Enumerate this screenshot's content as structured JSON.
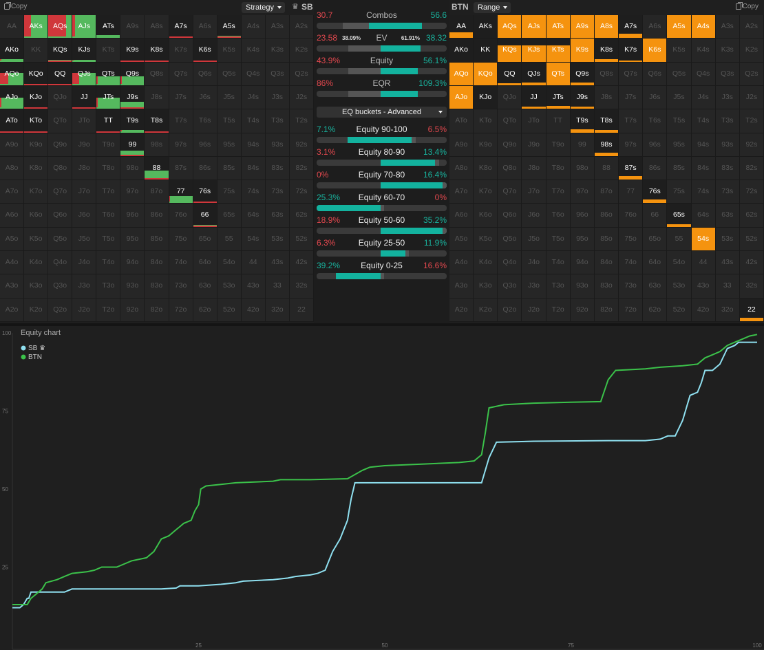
{
  "left": {
    "copy": "Copy",
    "dropdown": "Strategy",
    "player": "SB"
  },
  "right": {
    "player": "BTN",
    "dropdown": "Range",
    "copy": "Copy"
  },
  "hands": [
    [
      "AA",
      "AKs",
      "AQs",
      "AJs",
      "ATs",
      "A9s",
      "A8s",
      "A7s",
      "A6s",
      "A5s",
      "A4s",
      "A3s",
      "A2s"
    ],
    [
      "AKo",
      "KK",
      "KQs",
      "KJs",
      "KTs",
      "K9s",
      "K8s",
      "K7s",
      "K6s",
      "K5s",
      "K4s",
      "K3s",
      "K2s"
    ],
    [
      "AQo",
      "KQo",
      "QQ",
      "QJs",
      "QTs",
      "Q9s",
      "Q8s",
      "Q7s",
      "Q6s",
      "Q5s",
      "Q4s",
      "Q3s",
      "Q2s"
    ],
    [
      "AJo",
      "KJo",
      "QJo",
      "JJ",
      "JTs",
      "J9s",
      "J8s",
      "J7s",
      "J6s",
      "J5s",
      "J4s",
      "J3s",
      "J2s"
    ],
    [
      "ATo",
      "KTo",
      "QTo",
      "JTo",
      "TT",
      "T9s",
      "T8s",
      "T7s",
      "T6s",
      "T5s",
      "T4s",
      "T3s",
      "T2s"
    ],
    [
      "A9o",
      "K9o",
      "Q9o",
      "J9o",
      "T9o",
      "99",
      "98s",
      "97s",
      "96s",
      "95s",
      "94s",
      "93s",
      "92s"
    ],
    [
      "A8o",
      "K8o",
      "Q8o",
      "J8o",
      "T8o",
      "98o",
      "88",
      "87s",
      "86s",
      "85s",
      "84s",
      "83s",
      "82s"
    ],
    [
      "A7o",
      "K7o",
      "Q7o",
      "J7o",
      "T7o",
      "97o",
      "87o",
      "77",
      "76s",
      "75s",
      "74s",
      "73s",
      "72s"
    ],
    [
      "A6o",
      "K6o",
      "Q6o",
      "J6o",
      "T6o",
      "96o",
      "86o",
      "76o",
      "66",
      "65s",
      "64s",
      "63s",
      "62s"
    ],
    [
      "A5o",
      "K5o",
      "Q5o",
      "J5o",
      "T5o",
      "95o",
      "85o",
      "75o",
      "65o",
      "55",
      "54s",
      "53s",
      "52s"
    ],
    [
      "A4o",
      "K4o",
      "Q4o",
      "J4o",
      "T4o",
      "94o",
      "84o",
      "74o",
      "64o",
      "54o",
      "44",
      "43s",
      "42s"
    ],
    [
      "A3o",
      "K3o",
      "Q3o",
      "J3o",
      "T3o",
      "93o",
      "83o",
      "73o",
      "63o",
      "53o",
      "43o",
      "33",
      "32s"
    ],
    [
      "A2o",
      "K2o",
      "Q2o",
      "J2o",
      "T2o",
      "92o",
      "82o",
      "72o",
      "62o",
      "52o",
      "42o",
      "32o",
      "22"
    ]
  ],
  "sb_strategy": {
    "AKs": [
      0.3,
      1,
      0.7
    ],
    "AQs": [
      0.75,
      1,
      0.25
    ],
    "AJs": [
      0.1,
      1,
      0.9
    ],
    "ATs": [
      0,
      0.12,
      0.95
    ],
    "A7s": [
      0,
      0.08,
      1
    ],
    "A5s": [
      0,
      0.1,
      1
    ],
    "AKo": [
      0.05,
      0.1,
      0.95
    ],
    "KQs": [
      0,
      0.07,
      1
    ],
    "KJs": [
      0.05,
      0.07,
      0.95
    ],
    "K9s": [
      0,
      0.05,
      1
    ],
    "K8s": [
      0,
      0.05,
      1
    ],
    "K6s": [
      0,
      0,
      1
    ],
    "AQo": [
      0.35,
      0.55,
      0.65
    ],
    "KQo": [
      0,
      0,
      1
    ],
    "QQ": [
      0,
      0.07,
      1
    ],
    "QJs": [
      0.3,
      0.55,
      0.7
    ],
    "QTs": [
      0.05,
      0.4,
      0.95
    ],
    "Q9s": [
      0.05,
      0.4,
      0.95
    ],
    "AJo": [
      0.05,
      0.5,
      0.95
    ],
    "KJo": [
      0,
      0,
      1
    ],
    "JJ": [
      0,
      0.05,
      1
    ],
    "JTs": [
      0.05,
      0.5,
      0.95
    ],
    "J9s": [
      0,
      0.3,
      1
    ],
    "ATo": [
      0,
      0.04,
      1
    ],
    "KTo": [
      0,
      0.04,
      1
    ],
    "TT": [
      0,
      0.04,
      1
    ],
    "T9s": [
      0.05,
      0.1,
      0.95
    ],
    "T8s": [
      0,
      0.05,
      1
    ],
    "99": [
      0,
      0.25,
      1
    ],
    "88": [
      0,
      0.4,
      1
    ],
    "77": [
      0.04,
      0.3,
      0.96
    ],
    "76s": [
      0,
      0.05,
      1
    ],
    "66": [
      0,
      0.07,
      1
    ]
  },
  "btn_range": {
    "AA": 0.25,
    "AQs": 1,
    "AJs": 1,
    "ATs": 1,
    "A9s": 1,
    "A8s": 1,
    "A7s": 0.2,
    "A5s": 1,
    "A4s": 1,
    "AKo": 0,
    "KK": 0,
    "KQs": 0.7,
    "KJs": 0.7,
    "KTs": 0.7,
    "K9s": 1,
    "K8s": 0.12,
    "K7s": 0.05,
    "K6s": 1,
    "AQo": 1,
    "KQo": 1,
    "QQ": 0.1,
    "QJs": 0.12,
    "QTs": 1,
    "Q9s": 0.12,
    "AJo": 1,
    "KJo": 0,
    "JJ": 0.1,
    "JTs": 0.12,
    "J9s": 0.1,
    "T9s": 0.15,
    "T8s": 0.12,
    "98s": 0.15,
    "87s": 0.15,
    "76s": 0.15,
    "65s": 0.1,
    "54s": 1,
    "22": 0.15
  },
  "btn_on": [
    "AA",
    "AKs",
    "AQs",
    "AJs",
    "ATs",
    "A9s",
    "A8s",
    "A7s",
    "A5s",
    "A4s",
    "AKo",
    "KK",
    "KQs",
    "KJs",
    "KTs",
    "K9s",
    "K8s",
    "K7s",
    "K6s",
    "AQo",
    "KQo",
    "QQ",
    "QJs",
    "QTs",
    "Q9s",
    "AJo",
    "KJo",
    "JJ",
    "JTs",
    "J9s",
    "T9s",
    "T8s",
    "98s",
    "87s",
    "76s",
    "65s",
    "54s",
    "22"
  ],
  "stats": [
    {
      "label": "Combos",
      "left": "30.7",
      "right": "56.6",
      "bar": [
        0.4,
        0.81
      ]
    },
    {
      "label": "EV",
      "left": "23.58",
      "left_pct": "38.09%",
      "right": "38.32",
      "right_pct": "61.91%",
      "bar": [
        0.49,
        0.8
      ]
    },
    {
      "label": "Equity",
      "left": "43.9%",
      "right": "56.1%",
      "bar": [
        0.49,
        0.78
      ]
    },
    {
      "label": "EQR",
      "left": "86%",
      "right": "109.3%",
      "bar": [
        0.49,
        0.78
      ]
    }
  ],
  "eq_dropdown": "EQ buckets - Advanced",
  "buckets": [
    {
      "label": "Equity 90-100",
      "left": "7.1%",
      "right": "6.5%",
      "lc": "tl",
      "rc": "red",
      "bar": [
        0.24,
        0.49,
        0.73
      ]
    },
    {
      "label": "Equity 80-90",
      "left": "3.1%",
      "right": "13.4%",
      "lc": "red",
      "rc": "tl",
      "bar": [
        0.49,
        0.49,
        0.91
      ]
    },
    {
      "label": "Equity 70-80",
      "left": "0%",
      "right": "16.4%",
      "lc": "red",
      "rc": "tl",
      "bar": [
        0.49,
        0.49,
        1
      ]
    },
    {
      "label": "Equity 60-70",
      "left": "25.3%",
      "right": "0%",
      "lc": "tl",
      "rc": "red",
      "bar": [
        0,
        0.49,
        0.49
      ]
    },
    {
      "label": "Equity 50-60",
      "left": "18.9%",
      "right": "35.2%",
      "lc": "red",
      "rc": "tl",
      "bar": [
        0.49,
        0.49,
        1
      ]
    },
    {
      "label": "Equity 25-50",
      "left": "6.3%",
      "right": "11.9%",
      "lc": "red",
      "rc": "tl",
      "bar": [
        0.49,
        0.49,
        0.68
      ]
    },
    {
      "label": "Equity 0-25",
      "left": "39.2%",
      "right": "16.6%",
      "lc": "tl",
      "rc": "red",
      "bar": [
        0.15,
        0.49,
        0.49
      ]
    }
  ],
  "chart_data": {
    "type": "line",
    "title": "Equity chart",
    "xlim": [
      0,
      100
    ],
    "ylim": [
      0,
      100
    ],
    "xticks": [
      "25",
      "50",
      "75",
      "100"
    ],
    "yticks": [
      "25",
      "50",
      "75",
      "100"
    ],
    "series": [
      {
        "name": "SB",
        "legend_suffix": "♛",
        "color": "#8fe0f0",
        "points": [
          [
            0,
            12
          ],
          [
            1,
            12
          ],
          [
            1.5,
            13
          ],
          [
            2,
            15
          ],
          [
            2.2,
            15
          ],
          [
            2.5,
            17
          ],
          [
            5,
            17
          ],
          [
            6,
            17
          ],
          [
            7,
            17
          ],
          [
            8,
            18
          ],
          [
            10,
            18
          ],
          [
            20,
            18
          ],
          [
            22,
            18.3
          ],
          [
            22.5,
            19
          ],
          [
            25,
            19
          ],
          [
            28,
            19.5
          ],
          [
            30,
            20
          ],
          [
            31,
            20.5
          ],
          [
            35,
            21
          ],
          [
            37,
            21.5
          ],
          [
            38,
            22
          ],
          [
            40,
            22.5
          ],
          [
            41,
            23
          ],
          [
            42,
            24
          ],
          [
            42.5,
            27
          ],
          [
            43,
            30
          ],
          [
            44,
            34
          ],
          [
            44.5,
            37
          ],
          [
            45,
            40
          ],
          [
            45.2,
            43
          ],
          [
            45.5,
            47
          ],
          [
            46,
            52
          ],
          [
            63,
            52
          ],
          [
            64,
            60
          ],
          [
            65,
            65
          ],
          [
            70,
            65.3
          ],
          [
            80,
            65.5
          ],
          [
            85,
            65.5
          ],
          [
            87,
            66
          ],
          [
            88,
            67
          ],
          [
            89,
            67
          ],
          [
            90,
            72
          ],
          [
            90.5,
            76
          ],
          [
            91,
            80
          ],
          [
            92,
            81
          ],
          [
            92.5,
            84
          ],
          [
            93,
            88
          ],
          [
            94,
            88
          ],
          [
            95,
            90
          ],
          [
            96,
            95
          ],
          [
            97,
            96
          ],
          [
            97.5,
            97
          ],
          [
            100,
            97
          ]
        ]
      },
      {
        "name": "BTN",
        "color": "#3bc24a",
        "points": [
          [
            0,
            13
          ],
          [
            1,
            13
          ],
          [
            2,
            13
          ],
          [
            2.5,
            15
          ],
          [
            3,
            16
          ],
          [
            4,
            18
          ],
          [
            4.5,
            20
          ],
          [
            6,
            21
          ],
          [
            7,
            22
          ],
          [
            8,
            23
          ],
          [
            10,
            23.5
          ],
          [
            11,
            24
          ],
          [
            12,
            25
          ],
          [
            14,
            25
          ],
          [
            15,
            26
          ],
          [
            16,
            27
          ],
          [
            18,
            28
          ],
          [
            19,
            30
          ],
          [
            19.5,
            32
          ],
          [
            20,
            34
          ],
          [
            21,
            35
          ],
          [
            22,
            37
          ],
          [
            22.5,
            38
          ],
          [
            23,
            39
          ],
          [
            24,
            40
          ],
          [
            24.5,
            43
          ],
          [
            25,
            45
          ],
          [
            25.3,
            50
          ],
          [
            26,
            51
          ],
          [
            28,
            51.5
          ],
          [
            30,
            52
          ],
          [
            35,
            52.5
          ],
          [
            36,
            53
          ],
          [
            40,
            53
          ],
          [
            45,
            53.3
          ],
          [
            47,
            56
          ],
          [
            48,
            57
          ],
          [
            50,
            57.5
          ],
          [
            55,
            58
          ],
          [
            60,
            58.5
          ],
          [
            62,
            59
          ],
          [
            63,
            61
          ],
          [
            63.5,
            68
          ],
          [
            64,
            76
          ],
          [
            66,
            77
          ],
          [
            70,
            77.5
          ],
          [
            75,
            77.8
          ],
          [
            79,
            78
          ],
          [
            80,
            85
          ],
          [
            81,
            88
          ],
          [
            85,
            88.5
          ],
          [
            87,
            89
          ],
          [
            90,
            89.5
          ],
          [
            92,
            90
          ],
          [
            93,
            92
          ],
          [
            94,
            93
          ],
          [
            95,
            94
          ],
          [
            96,
            96
          ],
          [
            97,
            97
          ],
          [
            98,
            98
          ],
          [
            99,
            99
          ],
          [
            100,
            99.5
          ]
        ]
      }
    ]
  }
}
